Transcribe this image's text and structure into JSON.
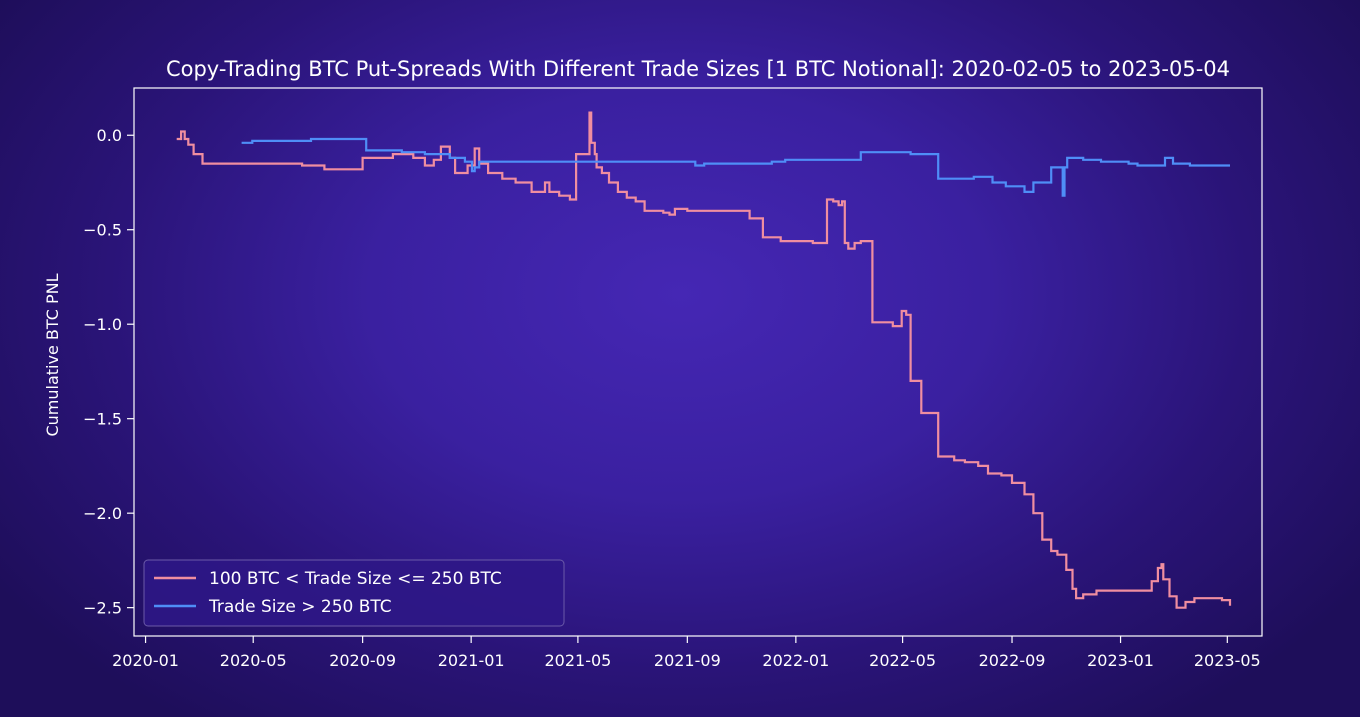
{
  "chart_data": {
    "type": "line",
    "title": "Copy-Trading BTC Put-Spreads With Different Trade Sizes [1 BTC Notional]: 2020-02-05 to 2023-05-04",
    "xlabel": "",
    "ylabel": "Cumulative BTC PNL",
    "xlim": [
      "2019-12-19",
      "2023-06-09"
    ],
    "ylim": [
      -2.65,
      0.25
    ],
    "x_ticks": [
      "2020-01",
      "2020-05",
      "2020-09",
      "2021-01",
      "2021-05",
      "2021-09",
      "2022-01",
      "2022-05",
      "2022-09",
      "2023-01",
      "2023-05"
    ],
    "y_ticks": [
      0.0,
      -0.5,
      -1.0,
      -1.5,
      -2.0,
      -2.5
    ],
    "y_tick_labels": [
      "0.0",
      "−0.5",
      "−1.0",
      "−1.5",
      "−2.0",
      "−2.5"
    ],
    "grid": false,
    "legend_position": "lower-left",
    "series": [
      {
        "name": "100 BTC < Trade Size <= 250 BTC",
        "color": "#f08ea0",
        "step": true,
        "points": [
          [
            "2020-02-05",
            -0.02
          ],
          [
            "2020-02-10",
            0.02
          ],
          [
            "2020-02-14",
            -0.02
          ],
          [
            "2020-02-18",
            -0.05
          ],
          [
            "2020-02-24",
            -0.1
          ],
          [
            "2020-03-05",
            -0.15
          ],
          [
            "2020-06-25",
            -0.16
          ],
          [
            "2020-07-20",
            -0.18
          ],
          [
            "2020-09-01",
            -0.12
          ],
          [
            "2020-10-05",
            -0.1
          ],
          [
            "2020-10-28",
            -0.12
          ],
          [
            "2020-11-10",
            -0.16
          ],
          [
            "2020-11-20",
            -0.13
          ],
          [
            "2020-11-28",
            -0.06
          ],
          [
            "2020-12-08",
            -0.12
          ],
          [
            "2020-12-14",
            -0.2
          ],
          [
            "2020-12-28",
            -0.16
          ],
          [
            "2021-01-05",
            -0.07
          ],
          [
            "2021-01-10",
            -0.15
          ],
          [
            "2021-01-20",
            -0.2
          ],
          [
            "2021-02-05",
            -0.23
          ],
          [
            "2021-02-20",
            -0.25
          ],
          [
            "2021-03-10",
            -0.3
          ],
          [
            "2021-03-25",
            -0.25
          ],
          [
            "2021-03-30",
            -0.3
          ],
          [
            "2021-04-10",
            -0.32
          ],
          [
            "2021-04-22",
            -0.34
          ],
          [
            "2021-04-29",
            -0.1
          ],
          [
            "2021-05-14",
            0.12
          ],
          [
            "2021-05-16",
            -0.04
          ],
          [
            "2021-05-20",
            -0.1
          ],
          [
            "2021-05-22",
            -0.17
          ],
          [
            "2021-05-28",
            -0.2
          ],
          [
            "2021-06-05",
            -0.25
          ],
          [
            "2021-06-15",
            -0.3
          ],
          [
            "2021-06-25",
            -0.33
          ],
          [
            "2021-07-05",
            -0.35
          ],
          [
            "2021-07-15",
            -0.4
          ],
          [
            "2021-08-05",
            -0.41
          ],
          [
            "2021-08-12",
            -0.42
          ],
          [
            "2021-08-18",
            -0.39
          ],
          [
            "2021-09-01",
            -0.4
          ],
          [
            "2021-11-10",
            -0.44
          ],
          [
            "2021-11-25",
            -0.54
          ],
          [
            "2021-12-15",
            -0.56
          ],
          [
            "2022-01-20",
            -0.57
          ],
          [
            "2022-02-05",
            -0.34
          ],
          [
            "2022-02-12",
            -0.35
          ],
          [
            "2022-02-18",
            -0.37
          ],
          [
            "2022-02-22",
            -0.35
          ],
          [
            "2022-02-25",
            -0.57
          ],
          [
            "2022-03-01",
            -0.6
          ],
          [
            "2022-03-08",
            -0.57
          ],
          [
            "2022-03-15",
            -0.56
          ],
          [
            "2022-03-28",
            -0.99
          ],
          [
            "2022-04-20",
            -1.01
          ],
          [
            "2022-04-30",
            -0.93
          ],
          [
            "2022-05-05",
            -0.95
          ],
          [
            "2022-05-10",
            -1.3
          ],
          [
            "2022-05-22",
            -1.47
          ],
          [
            "2022-06-10",
            -1.7
          ],
          [
            "2022-06-28",
            -1.72
          ],
          [
            "2022-07-10",
            -1.73
          ],
          [
            "2022-07-25",
            -1.75
          ],
          [
            "2022-08-05",
            -1.79
          ],
          [
            "2022-08-20",
            -1.8
          ],
          [
            "2022-09-01",
            -1.84
          ],
          [
            "2022-09-15",
            -1.9
          ],
          [
            "2022-09-25",
            -2.0
          ],
          [
            "2022-10-05",
            -2.14
          ],
          [
            "2022-10-15",
            -2.2
          ],
          [
            "2022-10-22",
            -2.22
          ],
          [
            "2022-11-01",
            -2.3
          ],
          [
            "2022-11-08",
            -2.4
          ],
          [
            "2022-11-12",
            -2.45
          ],
          [
            "2022-11-20",
            -2.43
          ],
          [
            "2022-12-05",
            -2.41
          ],
          [
            "2023-02-05",
            -2.36
          ],
          [
            "2023-02-12",
            -2.29
          ],
          [
            "2023-02-16",
            -2.27
          ],
          [
            "2023-02-18",
            -2.35
          ],
          [
            "2023-02-25",
            -2.44
          ],
          [
            "2023-03-05",
            -2.5
          ],
          [
            "2023-03-15",
            -2.47
          ],
          [
            "2023-03-25",
            -2.45
          ],
          [
            "2023-04-25",
            -2.46
          ],
          [
            "2023-05-04",
            -2.49
          ]
        ]
      },
      {
        "name": "Trade Size > 250 BTC",
        "color": "#4f8ef7",
        "step": true,
        "points": [
          [
            "2020-04-18",
            -0.04
          ],
          [
            "2020-04-30",
            -0.03
          ],
          [
            "2020-07-05",
            -0.02
          ],
          [
            "2020-08-01",
            -0.02
          ],
          [
            "2020-09-05",
            -0.08
          ],
          [
            "2020-10-15",
            -0.09
          ],
          [
            "2020-11-10",
            -0.1
          ],
          [
            "2020-12-08",
            -0.12
          ],
          [
            "2020-12-25",
            -0.14
          ],
          [
            "2021-01-02",
            -0.19
          ],
          [
            "2021-01-05",
            -0.17
          ],
          [
            "2021-01-10",
            -0.14
          ],
          [
            "2021-06-20",
            -0.14
          ],
          [
            "2021-09-10",
            -0.16
          ],
          [
            "2021-09-20",
            -0.15
          ],
          [
            "2021-12-05",
            -0.14
          ],
          [
            "2021-12-20",
            -0.13
          ],
          [
            "2022-03-15",
            -0.09
          ],
          [
            "2022-05-10",
            -0.1
          ],
          [
            "2022-06-10",
            -0.23
          ],
          [
            "2022-07-20",
            -0.22
          ],
          [
            "2022-08-10",
            -0.25
          ],
          [
            "2022-08-25",
            -0.27
          ],
          [
            "2022-09-15",
            -0.3
          ],
          [
            "2022-09-25",
            -0.25
          ],
          [
            "2022-10-15",
            -0.17
          ],
          [
            "2022-10-28",
            -0.32
          ],
          [
            "2022-10-30",
            -0.17
          ],
          [
            "2022-11-02",
            -0.12
          ],
          [
            "2022-11-20",
            -0.13
          ],
          [
            "2022-12-10",
            -0.14
          ],
          [
            "2023-01-10",
            -0.15
          ],
          [
            "2023-01-20",
            -0.16
          ],
          [
            "2023-02-20",
            -0.12
          ],
          [
            "2023-03-01",
            -0.15
          ],
          [
            "2023-03-20",
            -0.16
          ],
          [
            "2023-05-04",
            -0.16
          ]
        ]
      }
    ]
  }
}
